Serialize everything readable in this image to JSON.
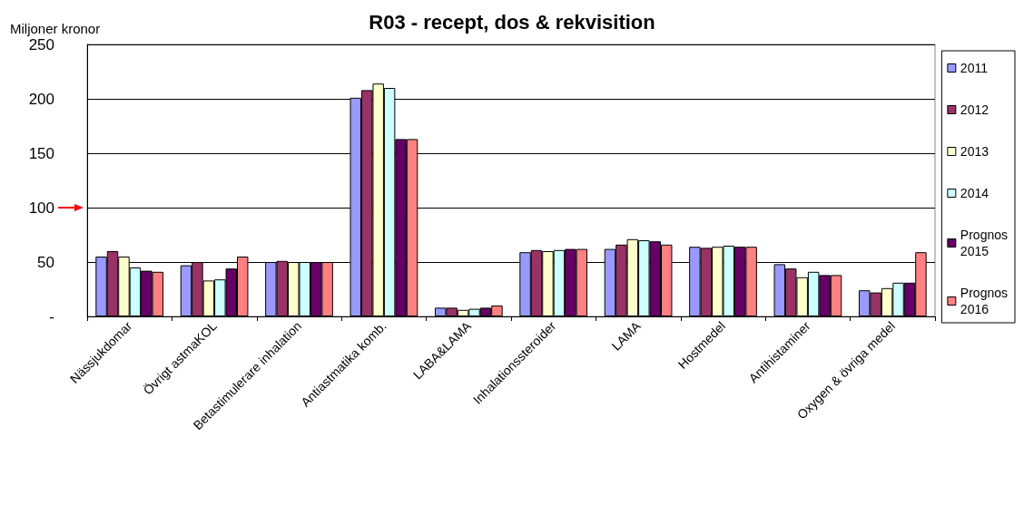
{
  "chart_data": {
    "type": "bar",
    "title": "R03 - recept, dos & rekvisition",
    "ylabel": "Miljoner kronor",
    "categories": [
      "Nässjukdomar",
      "Övrigt astmaKOL",
      "Betastimulerare inhalation",
      "Antiastmatika komb.",
      "LABA&LAMA",
      "Inhalationssteroider",
      "LAMA",
      "Hostmedel",
      "Antihistaminer",
      "Oxygen & övriga medel"
    ],
    "series": [
      {
        "name": "2011",
        "color": "#9999ff",
        "values": [
          55,
          47,
          50,
          201,
          8,
          59,
          62,
          64,
          48,
          24
        ]
      },
      {
        "name": "2012",
        "color": "#993366",
        "values": [
          60,
          50,
          51,
          208,
          8,
          61,
          66,
          63,
          44,
          22
        ]
      },
      {
        "name": "2013",
        "color": "#ffffcc",
        "values": [
          55,
          33,
          50,
          214,
          6,
          60,
          71,
          64,
          36,
          26
        ]
      },
      {
        "name": "2014",
        "color": "#ccffff",
        "values": [
          45,
          34,
          50,
          210,
          7,
          61,
          70,
          65,
          41,
          31
        ]
      },
      {
        "name": "Prognos 2015",
        "color": "#660066",
        "values": [
          42,
          44,
          50,
          163,
          8,
          62,
          69,
          64,
          38,
          31
        ]
      },
      {
        "name": "Prognos 2016",
        "color": "#ff8080",
        "values": [
          41,
          55,
          50,
          163,
          10,
          62,
          66,
          64,
          38,
          59
        ]
      }
    ],
    "ylim": [
      0,
      250
    ],
    "yticks": [
      {
        "value": 0,
        "label": "-"
      },
      50,
      100,
      150,
      200,
      250
    ],
    "grid": "y",
    "legend": "right"
  }
}
